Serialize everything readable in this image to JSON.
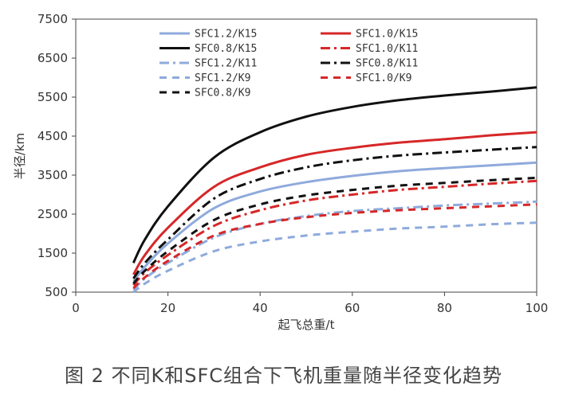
{
  "caption": "图 2 不同K和SFC组合下飞机重量随半径变化趋势",
  "chart_data": {
    "type": "line",
    "title": "",
    "xlabel": "起飞总重/t",
    "ylabel": "半径/km",
    "xlim": [
      0,
      100
    ],
    "ylim": [
      500,
      7500
    ],
    "xticks": [
      0,
      20,
      40,
      60,
      80,
      100
    ],
    "yticks": [
      500,
      1500,
      2500,
      3500,
      4500,
      5500,
      6500,
      7500
    ],
    "grid": false,
    "legend_position": "top",
    "x": [
      12.5,
      15,
      20,
      30,
      40,
      50,
      60,
      70,
      80,
      90,
      100
    ],
    "series": [
      {
        "name": "SFC1.2/K15",
        "color": "#8faadc",
        "dash": "solid",
        "values": [
          780,
          1150,
          1750,
          2650,
          3080,
          3320,
          3480,
          3600,
          3680,
          3750,
          3820
        ]
      },
      {
        "name": "SFC1.0/K15",
        "color": "#d62728",
        "dash": "solid",
        "values": [
          950,
          1450,
          2150,
          3200,
          3700,
          4020,
          4200,
          4330,
          4420,
          4520,
          4600
        ]
      },
      {
        "name": "SFC0.8/K15",
        "color": "#111111",
        "dash": "solid",
        "values": [
          1250,
          1850,
          2700,
          3950,
          4600,
          5000,
          5250,
          5420,
          5540,
          5640,
          5750
        ]
      },
      {
        "name": "SFC1.0/K11",
        "color": "#d62728",
        "dash": "dashdot",
        "values": [
          680,
          1000,
          1450,
          2200,
          2600,
          2850,
          3000,
          3120,
          3200,
          3280,
          3350
        ]
      },
      {
        "name": "SFC1.2/K11",
        "color": "#8faadc",
        "dash": "dashdot",
        "values": [
          560,
          850,
          1250,
          1900,
          2250,
          2450,
          2580,
          2650,
          2720,
          2770,
          2820
        ]
      },
      {
        "name": "SFC0.8/K11",
        "color": "#111111",
        "dash": "dashdot",
        "values": [
          850,
          1250,
          1850,
          2900,
          3400,
          3700,
          3880,
          4000,
          4080,
          4150,
          4220
        ]
      },
      {
        "name": "SFC1.2/K9",
        "color": "#8faadc",
        "dash": "dash",
        "values": [
          500,
          720,
          1050,
          1550,
          1800,
          1950,
          2050,
          2130,
          2180,
          2240,
          2280
        ]
      },
      {
        "name": "SFC1.0/K9",
        "color": "#d62728",
        "dash": "dash",
        "values": [
          600,
          880,
          1300,
          1950,
          2250,
          2420,
          2530,
          2600,
          2650,
          2700,
          2750
        ]
      },
      {
        "name": "SFC0.8/K9",
        "color": "#111111",
        "dash": "dash",
        "values": [
          720,
          1050,
          1550,
          2350,
          2750,
          2980,
          3120,
          3230,
          3300,
          3370,
          3430
        ]
      }
    ]
  }
}
